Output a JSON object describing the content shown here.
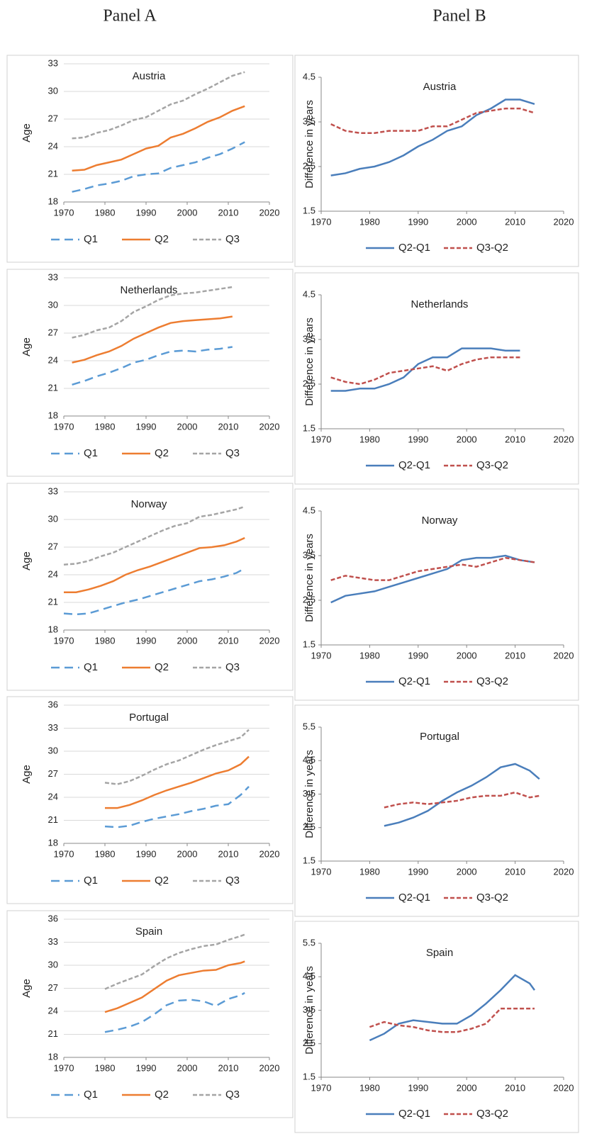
{
  "headers": {
    "panel_a": "Panel A",
    "panel_b": "Panel B"
  },
  "chart_data": [
    {
      "type": "line",
      "title": "Austria",
      "ylabel": "Age",
      "grid": true,
      "xlim": [
        1970,
        2020
      ],
      "xticks": [
        1970,
        1980,
        1990,
        2000,
        2010,
        2020
      ],
      "ylim": [
        18,
        33
      ],
      "yticks": [
        18,
        21,
        24,
        27,
        30,
        33
      ],
      "x": [
        1972,
        1975,
        1978,
        1981,
        1984,
        1987,
        1990,
        1993,
        1996,
        1999,
        2002,
        2005,
        2008,
        2011,
        2014
      ],
      "series": [
        {
          "name": "Q1",
          "color": "#5b9bd5",
          "style": "long-dash",
          "values": [
            19.1,
            19.4,
            19.8,
            20.0,
            20.3,
            20.8,
            21.0,
            21.1,
            21.7,
            22.0,
            22.3,
            22.8,
            23.2,
            23.8,
            24.5
          ]
        },
        {
          "name": "Q2",
          "color": "#ed7d31",
          "style": "solid",
          "values": [
            21.4,
            21.5,
            22.0,
            22.3,
            22.6,
            23.2,
            23.8,
            24.1,
            25.0,
            25.4,
            26.0,
            26.7,
            27.2,
            27.9,
            28.4
          ]
        },
        {
          "name": "Q3",
          "color": "#a5a5a5",
          "style": "short-dash",
          "values": [
            24.9,
            25.0,
            25.5,
            25.8,
            26.3,
            26.9,
            27.2,
            27.9,
            28.6,
            29.0,
            29.7,
            30.3,
            31.0,
            31.7,
            32.1
          ]
        }
      ]
    },
    {
      "type": "line",
      "title": "Austria",
      "ylabel": "Difference in years",
      "grid": false,
      "xlim": [
        1970,
        2020
      ],
      "xticks": [
        1970,
        1980,
        1990,
        2000,
        2010,
        2020
      ],
      "ylim": [
        1.5,
        4.5
      ],
      "yticks": [
        1.5,
        2.5,
        3.5,
        4.5
      ],
      "x": [
        1972,
        1975,
        1978,
        1981,
        1984,
        1987,
        1990,
        1993,
        1996,
        1999,
        2002,
        2005,
        2008,
        2011,
        2014
      ],
      "series": [
        {
          "name": "Q2-Q1",
          "color": "#4a7ebb",
          "style": "solid",
          "values": [
            2.3,
            2.35,
            2.45,
            2.5,
            2.6,
            2.75,
            2.95,
            3.1,
            3.3,
            3.4,
            3.65,
            3.8,
            4.0,
            4.0,
            3.9
          ]
        },
        {
          "name": "Q3-Q2",
          "color": "#c0504d",
          "style": "short-dash",
          "values": [
            3.45,
            3.3,
            3.25,
            3.25,
            3.3,
            3.3,
            3.3,
            3.4,
            3.4,
            3.55,
            3.7,
            3.75,
            3.8,
            3.8,
            3.7
          ]
        }
      ]
    },
    {
      "type": "line",
      "title": "Netherlands",
      "ylabel": "Age",
      "grid": true,
      "xlim": [
        1970,
        2020
      ],
      "xticks": [
        1970,
        1980,
        1990,
        2000,
        2010,
        2020
      ],
      "ylim": [
        18,
        33
      ],
      "yticks": [
        18,
        21,
        24,
        27,
        30,
        33
      ],
      "x": [
        1972,
        1975,
        1978,
        1981,
        1984,
        1987,
        1990,
        1993,
        1996,
        1999,
        2002,
        2005,
        2008,
        2011
      ],
      "series": [
        {
          "name": "Q1",
          "color": "#5b9bd5",
          "style": "long-dash",
          "values": [
            21.4,
            21.8,
            22.3,
            22.7,
            23.2,
            23.8,
            24.1,
            24.6,
            25.0,
            25.1,
            25.0,
            25.2,
            25.3,
            25.5
          ]
        },
        {
          "name": "Q2",
          "color": "#ed7d31",
          "style": "solid",
          "values": [
            23.8,
            24.1,
            24.6,
            25.0,
            25.6,
            26.4,
            27.0,
            27.6,
            28.1,
            28.3,
            28.4,
            28.5,
            28.6,
            28.8
          ]
        },
        {
          "name": "Q3",
          "color": "#a5a5a5",
          "style": "short-dash",
          "values": [
            26.5,
            26.8,
            27.3,
            27.6,
            28.3,
            29.3,
            29.9,
            30.6,
            31.1,
            31.3,
            31.4,
            31.6,
            31.8,
            32.0
          ]
        }
      ]
    },
    {
      "type": "line",
      "title": "Netherlands",
      "ylabel": "Difference in years",
      "grid": false,
      "xlim": [
        1970,
        2020
      ],
      "xticks": [
        1970,
        1980,
        1990,
        2000,
        2010,
        2020
      ],
      "ylim": [
        1.5,
        4.5
      ],
      "yticks": [
        1.5,
        2.5,
        3.5,
        4.5
      ],
      "x": [
        1972,
        1975,
        1978,
        1981,
        1984,
        1987,
        1990,
        1993,
        1996,
        1999,
        2002,
        2005,
        2008,
        2011
      ],
      "series": [
        {
          "name": "Q2-Q1",
          "color": "#4a7ebb",
          "style": "solid",
          "values": [
            2.35,
            2.35,
            2.4,
            2.4,
            2.5,
            2.65,
            2.95,
            3.1,
            3.1,
            3.3,
            3.3,
            3.3,
            3.25,
            3.25
          ]
        },
        {
          "name": "Q3-Q2",
          "color": "#c0504d",
          "style": "short-dash",
          "values": [
            2.65,
            2.55,
            2.5,
            2.6,
            2.75,
            2.8,
            2.85,
            2.9,
            2.8,
            2.95,
            3.05,
            3.1,
            3.1,
            3.1
          ]
        }
      ]
    },
    {
      "type": "line",
      "title": "Norway",
      "ylabel": "Age",
      "grid": true,
      "xlim": [
        1970,
        2020
      ],
      "xticks": [
        1970,
        1980,
        1990,
        2000,
        2010,
        2020
      ],
      "ylim": [
        18,
        33
      ],
      "yticks": [
        18,
        21,
        24,
        27,
        30,
        33
      ],
      "x": [
        1970,
        1973,
        1976,
        1979,
        1982,
        1985,
        1988,
        1991,
        1994,
        1997,
        2000,
        2003,
        2006,
        2009,
        2012,
        2014
      ],
      "series": [
        {
          "name": "Q1",
          "color": "#5b9bd5",
          "style": "long-dash",
          "values": [
            19.8,
            19.7,
            19.8,
            20.2,
            20.6,
            21.0,
            21.3,
            21.7,
            22.1,
            22.5,
            22.9,
            23.3,
            23.5,
            23.8,
            24.2,
            24.7
          ]
        },
        {
          "name": "Q2",
          "color": "#ed7d31",
          "style": "solid",
          "values": [
            22.1,
            22.1,
            22.4,
            22.8,
            23.3,
            24.0,
            24.5,
            24.9,
            25.4,
            25.9,
            26.4,
            26.9,
            27.0,
            27.2,
            27.6,
            28.0
          ]
        },
        {
          "name": "Q3",
          "color": "#a5a5a5",
          "style": "short-dash",
          "values": [
            25.1,
            25.2,
            25.5,
            26.0,
            26.4,
            27.0,
            27.6,
            28.2,
            28.8,
            29.3,
            29.6,
            30.3,
            30.5,
            30.8,
            31.1,
            31.4
          ]
        }
      ]
    },
    {
      "type": "line",
      "title": "Norway",
      "ylabel": "Difference in years",
      "grid": false,
      "xlim": [
        1970,
        2020
      ],
      "xticks": [
        1970,
        1980,
        1990,
        2000,
        2010,
        2020
      ],
      "ylim": [
        1.5,
        4.5
      ],
      "yticks": [
        1.5,
        2.5,
        3.5,
        4.5
      ],
      "x": [
        1972,
        1975,
        1978,
        1981,
        1984,
        1987,
        1990,
        1993,
        1996,
        1999,
        2002,
        2005,
        2008,
        2011,
        2014
      ],
      "series": [
        {
          "name": "Q2-Q1",
          "color": "#4a7ebb",
          "style": "solid",
          "values": [
            2.45,
            2.6,
            2.65,
            2.7,
            2.8,
            2.9,
            3.0,
            3.1,
            3.2,
            3.4,
            3.45,
            3.45,
            3.5,
            3.4,
            3.35
          ]
        },
        {
          "name": "Q3-Q2",
          "color": "#c0504d",
          "style": "short-dash",
          "values": [
            2.95,
            3.05,
            3.0,
            2.95,
            2.95,
            3.05,
            3.15,
            3.2,
            3.25,
            3.3,
            3.25,
            3.35,
            3.45,
            3.4,
            3.35
          ]
        }
      ]
    },
    {
      "type": "line",
      "title": "Portugal",
      "ylabel": "Age",
      "grid": true,
      "xlim": [
        1970,
        2020
      ],
      "xticks": [
        1970,
        1980,
        1990,
        2000,
        2010,
        2020
      ],
      "ylim": [
        18,
        36
      ],
      "yticks": [
        18,
        21,
        24,
        27,
        30,
        33,
        36
      ],
      "x": [
        1980,
        1983,
        1986,
        1989,
        1992,
        1995,
        1998,
        2001,
        2004,
        2007,
        2010,
        2013,
        2015
      ],
      "series": [
        {
          "name": "Q1",
          "color": "#5b9bd5",
          "style": "long-dash",
          "values": [
            20.2,
            20.1,
            20.3,
            20.8,
            21.2,
            21.5,
            21.8,
            22.2,
            22.5,
            22.9,
            23.1,
            24.3,
            25.4
          ]
        },
        {
          "name": "Q2",
          "color": "#ed7d31",
          "style": "solid",
          "values": [
            22.6,
            22.6,
            23.0,
            23.6,
            24.3,
            24.9,
            25.4,
            25.9,
            26.5,
            27.1,
            27.5,
            28.3,
            29.3
          ]
        },
        {
          "name": "Q3",
          "color": "#a5a5a5",
          "style": "short-dash",
          "values": [
            25.9,
            25.7,
            26.1,
            26.8,
            27.6,
            28.3,
            28.8,
            29.5,
            30.2,
            30.8,
            31.3,
            31.8,
            32.8
          ]
        }
      ]
    },
    {
      "type": "line",
      "title": "Portugal",
      "ylabel": "Difference in years",
      "grid": false,
      "xlim": [
        1970,
        2020
      ],
      "xticks": [
        1970,
        1980,
        1990,
        2000,
        2010,
        2020
      ],
      "ylim": [
        1.5,
        5.5
      ],
      "yticks": [
        1.5,
        2.5,
        3.5,
        4.5,
        5.5
      ],
      "x": [
        1983,
        1986,
        1989,
        1992,
        1995,
        1998,
        2001,
        2004,
        2007,
        2010,
        2013,
        2015
      ],
      "series": [
        {
          "name": "Q2-Q1",
          "color": "#4a7ebb",
          "style": "solid",
          "values": [
            2.55,
            2.65,
            2.8,
            3.0,
            3.3,
            3.55,
            3.75,
            4.0,
            4.3,
            4.4,
            4.2,
            3.95
          ]
        },
        {
          "name": "Q3-Q2",
          "color": "#c0504d",
          "style": "short-dash",
          "values": [
            3.1,
            3.2,
            3.25,
            3.2,
            3.25,
            3.3,
            3.4,
            3.45,
            3.45,
            3.55,
            3.4,
            3.45
          ]
        }
      ]
    },
    {
      "type": "line",
      "title": "Spain",
      "ylabel": "Age",
      "grid": true,
      "xlim": [
        1970,
        2020
      ],
      "xticks": [
        1970,
        1980,
        1990,
        2000,
        2010,
        2020
      ],
      "ylim": [
        18,
        36
      ],
      "yticks": [
        18,
        21,
        24,
        27,
        30,
        33,
        36
      ],
      "x": [
        1980,
        1983,
        1986,
        1989,
        1992,
        1995,
        1998,
        2001,
        2004,
        2007,
        2010,
        2013,
        2014
      ],
      "series": [
        {
          "name": "Q1",
          "color": "#5b9bd5",
          "style": "long-dash",
          "values": [
            21.3,
            21.6,
            22.0,
            22.6,
            23.6,
            24.8,
            25.4,
            25.5,
            25.3,
            24.7,
            25.6,
            26.1,
            26.4
          ]
        },
        {
          "name": "Q2",
          "color": "#ed7d31",
          "style": "solid",
          "values": [
            23.9,
            24.4,
            25.1,
            25.8,
            26.9,
            28.0,
            28.7,
            29.0,
            29.3,
            29.4,
            30.0,
            30.3,
            30.5
          ]
        },
        {
          "name": "Q3",
          "color": "#a5a5a5",
          "style": "short-dash",
          "values": [
            26.9,
            27.6,
            28.2,
            28.8,
            29.9,
            30.9,
            31.6,
            32.1,
            32.5,
            32.7,
            33.3,
            33.8,
            34.0
          ]
        }
      ]
    },
    {
      "type": "line",
      "title": "Spain",
      "ylabel": "Difference in years",
      "grid": false,
      "xlim": [
        1970,
        2020
      ],
      "xticks": [
        1970,
        1980,
        1990,
        2000,
        2010,
        2020
      ],
      "ylim": [
        1.5,
        5.5
      ],
      "yticks": [
        1.5,
        2.5,
        3.5,
        4.5,
        5.5
      ],
      "x": [
        1980,
        1983,
        1986,
        1989,
        1992,
        1995,
        1998,
        2001,
        2004,
        2007,
        2010,
        2013,
        2014
      ],
      "series": [
        {
          "name": "Q2-Q1",
          "color": "#4a7ebb",
          "style": "solid",
          "values": [
            2.6,
            2.8,
            3.1,
            3.2,
            3.15,
            3.1,
            3.1,
            3.35,
            3.7,
            4.1,
            4.55,
            4.3,
            4.1
          ]
        },
        {
          "name": "Q3-Q2",
          "color": "#c0504d",
          "style": "short-dash",
          "values": [
            3.0,
            3.15,
            3.05,
            3.0,
            2.9,
            2.85,
            2.85,
            2.95,
            3.1,
            3.55,
            3.55,
            3.55,
            3.55
          ]
        }
      ]
    }
  ]
}
